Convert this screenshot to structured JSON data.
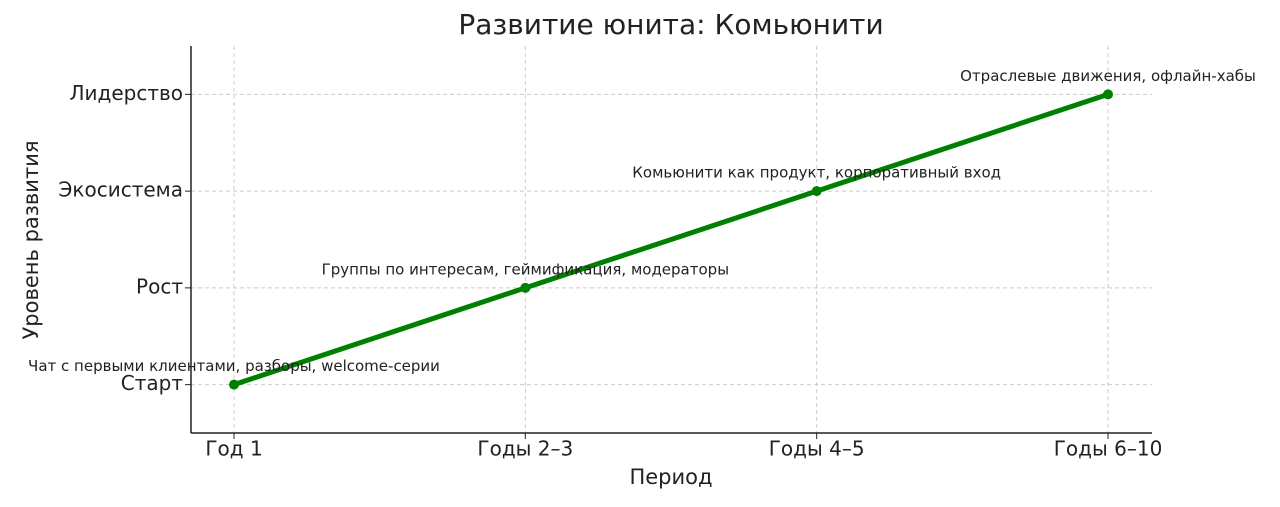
{
  "chart_data": {
    "type": "line",
    "title": "Развитие юнита: Комьюнити",
    "xlabel": "Период",
    "ylabel": "Уровень развития",
    "categories": [
      "Год 1",
      "Годы 2–3",
      "Годы 4–5",
      "Годы 6–10"
    ],
    "series": [
      {
        "name": "Уровень развития",
        "color": "#008000",
        "values": [
          0,
          1,
          2,
          3
        ]
      }
    ],
    "annotations": [
      "Чат с первыми клиентами, разборы, welcome-серии",
      "Группы по интересам, геймификация, модераторы",
      "Комьюнити как продукт, корпоративный вход",
      "Отраслевые движения, офлайн-хабы"
    ],
    "ylim": [
      -0.5,
      3.5
    ],
    "yticks": [
      {
        "value": 0,
        "label": "Старт"
      },
      {
        "value": 1,
        "label": "Рост"
      },
      {
        "value": 2,
        "label": "Экосистема"
      },
      {
        "value": 3,
        "label": "Лидерство"
      }
    ],
    "grid": true
  }
}
